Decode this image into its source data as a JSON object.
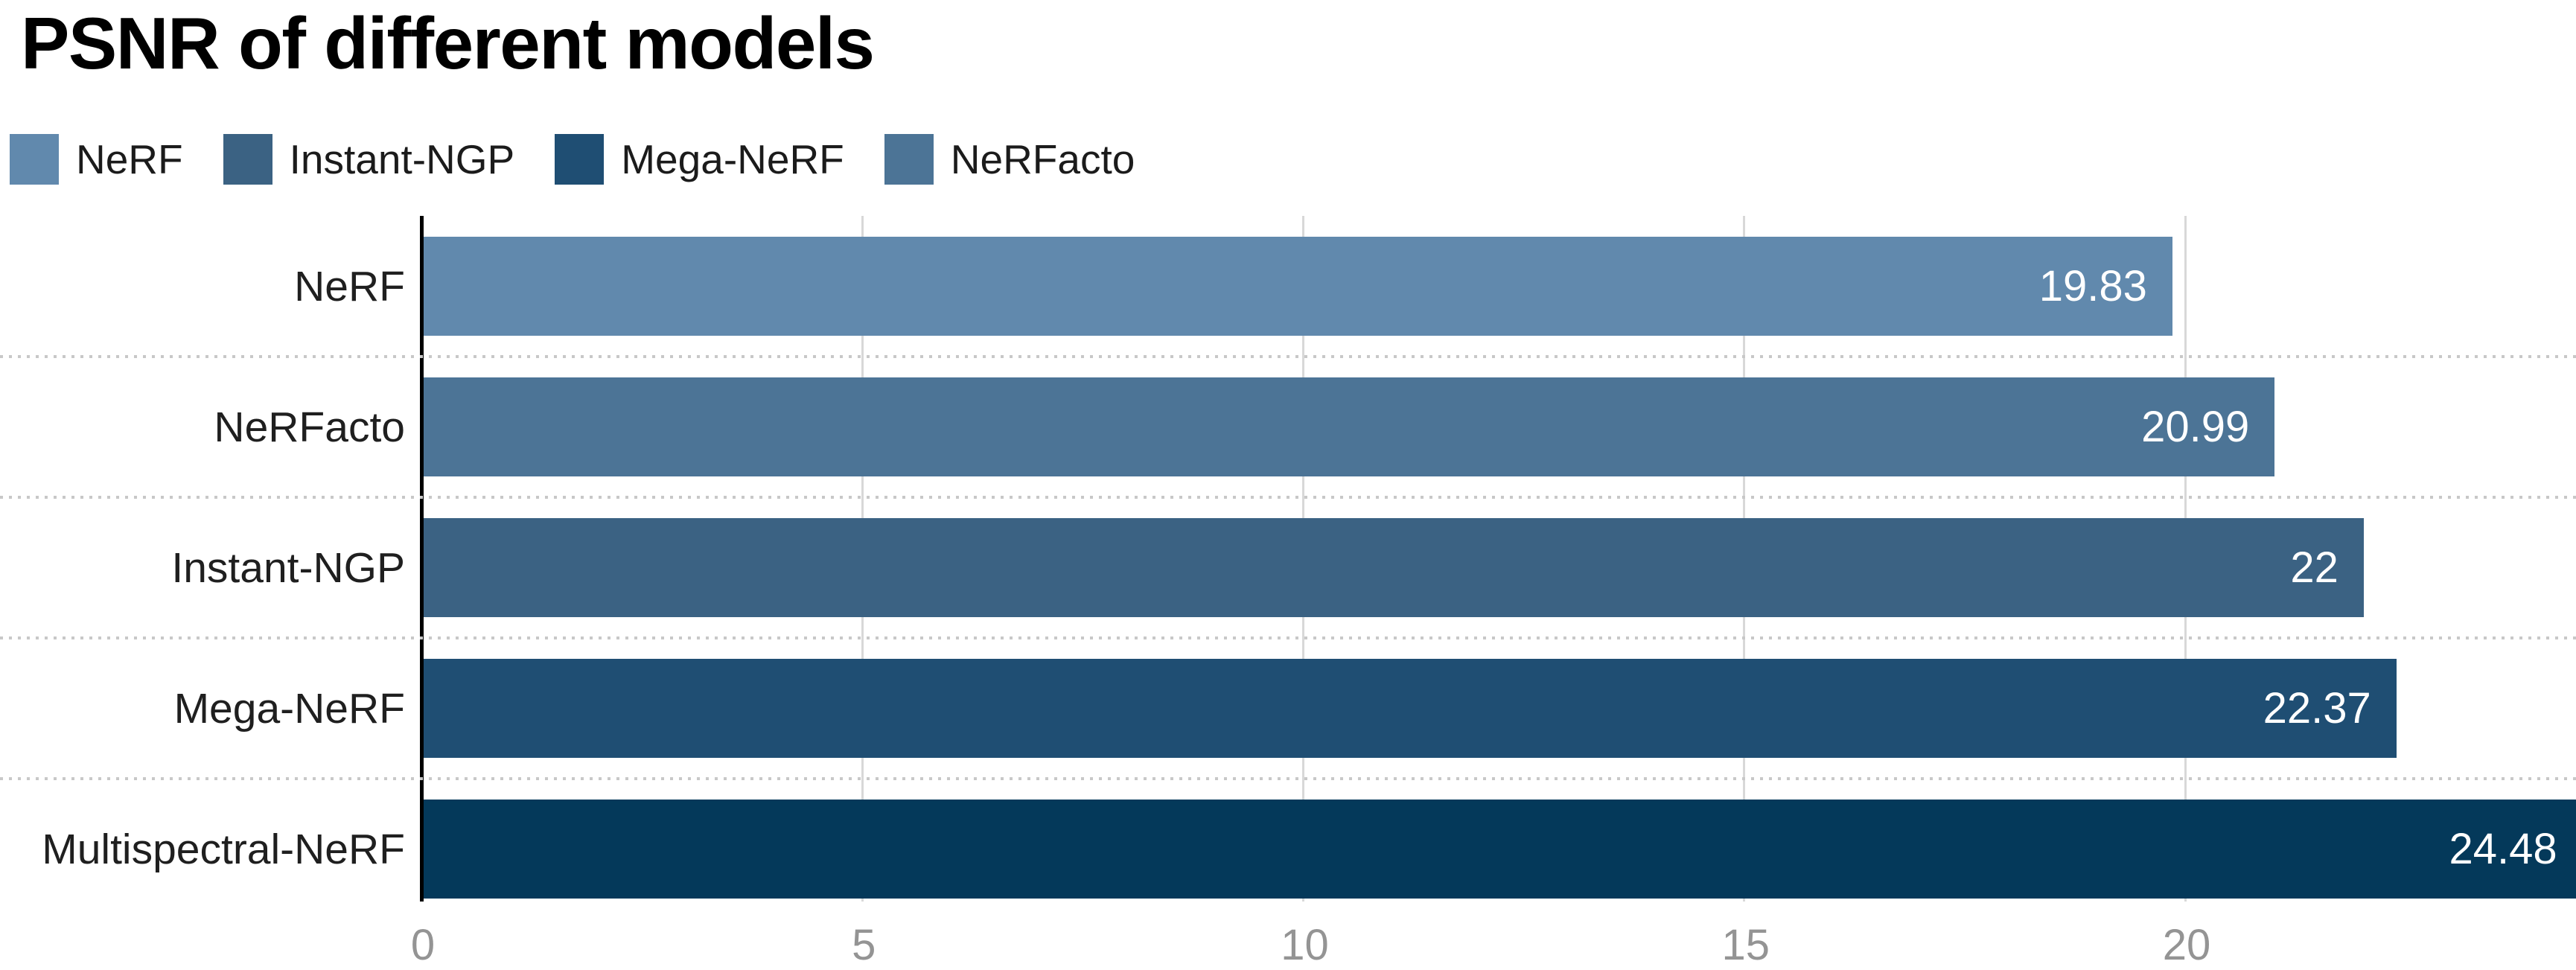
{
  "title": "PSNR of different models",
  "legend": {
    "position": "top-left",
    "items": [
      {
        "label": "NeRF",
        "color": "#6189ad"
      },
      {
        "label": "Instant-NGP",
        "color": "#3b6283"
      },
      {
        "label": "Mega-NeRF",
        "color": "#1f4e73"
      },
      {
        "label": "NeRFacto",
        "color": "#4c7496"
      }
    ]
  },
  "chart_data": {
    "type": "bar",
    "orientation": "horizontal",
    "title": "PSNR of different models",
    "categories": [
      "NeRF",
      "NeRFacto",
      "Instant-NGP",
      "Mega-NeRF",
      "Multispectral-NeRF"
    ],
    "values": [
      19.83,
      20.99,
      22,
      22.37,
      24.48
    ],
    "value_labels": [
      "19.83",
      "20.99",
      "22",
      "22.37",
      "24.48"
    ],
    "bar_colors": [
      "#6189ad",
      "#4c7496",
      "#3b6283",
      "#1f4e73",
      "#04395a"
    ],
    "xlabel": "",
    "ylabel": "",
    "xlim": [
      0,
      24.43
    ],
    "x_ticks": [
      0,
      5,
      10,
      15,
      20
    ],
    "x_tick_labels": [
      "0",
      "5",
      "10",
      "15",
      "20"
    ],
    "grid": "vertical solid light-gray gridlines at ticks; dotted horizontal row separators; no top/right border",
    "value_label_position": "inside-end, white",
    "legend_position": "top-left"
  },
  "colors": {
    "background": "#ffffff",
    "axis_line": "#000000",
    "vertical_gridline": "#d8d8d8",
    "row_separator": "#c8c8c8",
    "tick_label": "#949494",
    "category_label": "#1f1f1f",
    "value_label": "#ffffff",
    "title": "#000000"
  }
}
